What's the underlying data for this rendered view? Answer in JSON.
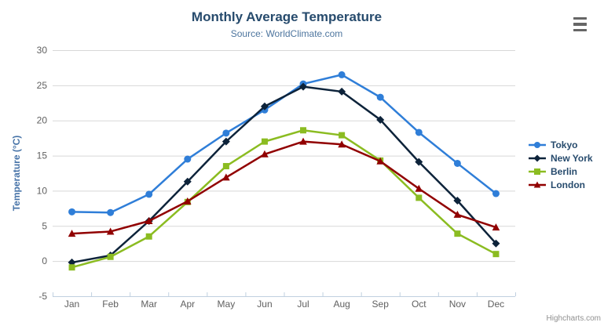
{
  "ui": {
    "credits": "Highcharts.com",
    "export_icon": "hamburger-menu"
  },
  "colors": {
    "title": "#274b6d",
    "subtitle": "#4d759e",
    "axis_label": "#606060",
    "axis_title": "#4572a7",
    "grid_line": "#d8d8d8",
    "axis_line": "#c0d0e0",
    "legend_text": "#274b6d",
    "credits_text": "#909090"
  },
  "chart_data": {
    "type": "line",
    "title": "Monthly Average Temperature",
    "subtitle": "Source: WorldClimate.com",
    "categories": [
      "Jan",
      "Feb",
      "Mar",
      "Apr",
      "May",
      "Jun",
      "Jul",
      "Aug",
      "Sep",
      "Oct",
      "Nov",
      "Dec"
    ],
    "series": [
      {
        "name": "Tokyo",
        "color": "#2f7ed8",
        "marker": "circle",
        "values": [
          7.0,
          6.9,
          9.5,
          14.5,
          18.2,
          21.5,
          25.2,
          26.5,
          23.3,
          18.3,
          13.9,
          9.6
        ]
      },
      {
        "name": "New York",
        "color": "#0d233a",
        "marker": "diamond",
        "values": [
          -0.2,
          0.8,
          5.7,
          11.3,
          17.0,
          22.0,
          24.8,
          24.1,
          20.1,
          14.1,
          8.6,
          2.5
        ]
      },
      {
        "name": "Berlin",
        "color": "#8bbc21",
        "marker": "square",
        "values": [
          -0.9,
          0.6,
          3.5,
          8.4,
          13.5,
          17.0,
          18.6,
          17.9,
          14.3,
          9.0,
          3.9,
          1.0
        ]
      },
      {
        "name": "London",
        "color": "#910000",
        "marker": "triangle",
        "values": [
          3.9,
          4.2,
          5.7,
          8.5,
          11.9,
          15.2,
          17.0,
          16.6,
          14.2,
          10.3,
          6.6,
          4.8
        ]
      }
    ],
    "xlabel": "",
    "ylabel": "Temperature (°C)",
    "ylim": [
      -5,
      30
    ],
    "ytick_interval": 5,
    "yticks": [
      -5,
      0,
      5,
      10,
      15,
      20,
      25,
      30
    ],
    "grid": true,
    "legend_position": "right"
  }
}
